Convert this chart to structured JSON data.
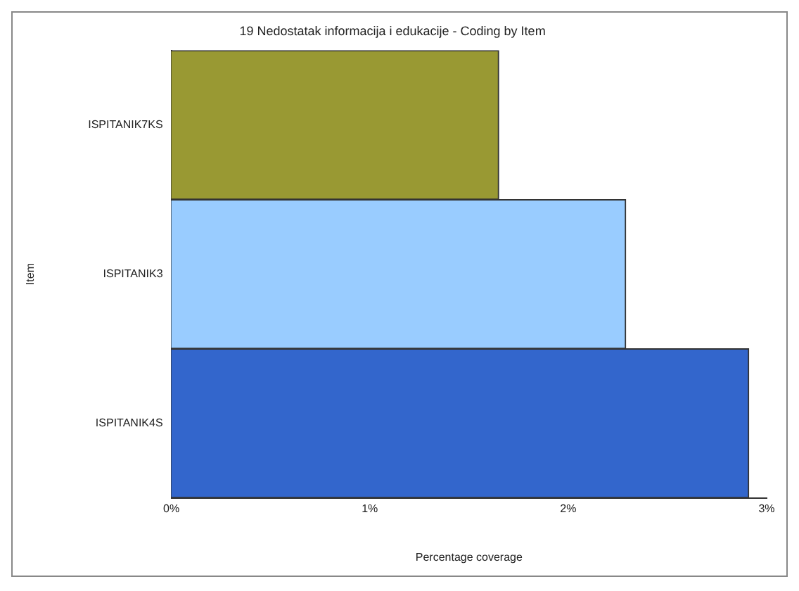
{
  "chart_data": {
    "type": "bar",
    "orientation": "horizontal",
    "title": "19 Nedostatak informacija i edukacije - Coding by Item",
    "xlabel": "Percentage coverage",
    "ylabel": "Item",
    "categories": [
      "ISPITANIK7KS",
      "ISPITANIK3",
      "ISPITANIK4S"
    ],
    "values": [
      1.65,
      2.29,
      2.91
    ],
    "colors": [
      "#999933",
      "#99ccff",
      "#3366cc"
    ],
    "xlim": [
      0,
      3
    ],
    "xticks": [
      {
        "value": 0,
        "label": "0%"
      },
      {
        "value": 1,
        "label": "1%"
      },
      {
        "value": 2,
        "label": "2%"
      },
      {
        "value": 3,
        "label": "3%"
      }
    ],
    "grid": false,
    "legend": false
  }
}
